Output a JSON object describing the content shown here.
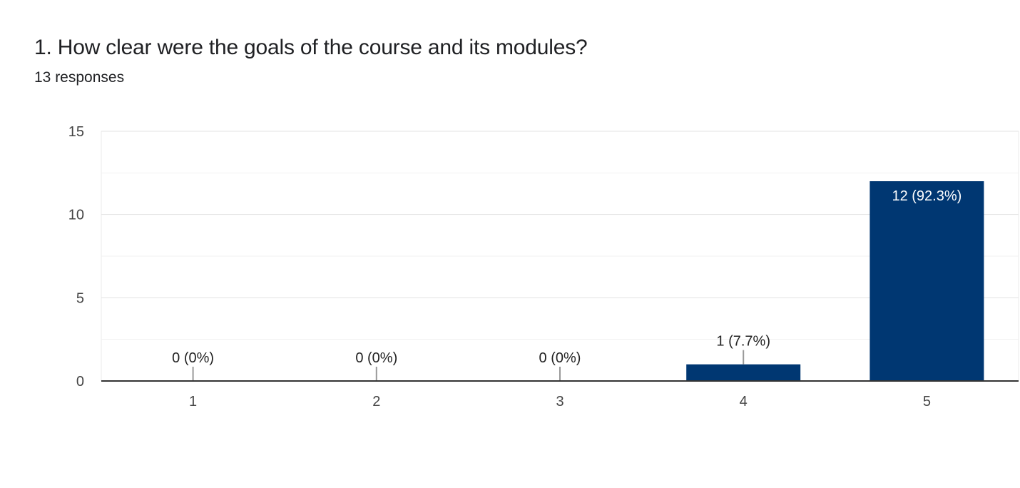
{
  "question": {
    "title": "1. How clear were the goals of the course and its modules?",
    "responses": "13 responses"
  },
  "colors": {
    "bar": "#003772",
    "grid": "#ebebeb",
    "axis": "#333333",
    "leader": "#999999"
  },
  "chart_data": {
    "type": "bar",
    "title": "1. How clear were the goals of the course and its modules?",
    "subtitle": "13 responses",
    "xlabel": "",
    "ylabel": "",
    "categories": [
      "1",
      "2",
      "3",
      "4",
      "5"
    ],
    "values": [
      0,
      0,
      0,
      1,
      12
    ],
    "data_labels": [
      "0 (0%)",
      "0 (0%)",
      "0 (0%)",
      "1 (7.7%)",
      "12 (92.3%)"
    ],
    "ylim": [
      0,
      15
    ],
    "yticks": [
      0,
      5,
      10,
      15
    ],
    "grid": true,
    "legend": "none"
  }
}
